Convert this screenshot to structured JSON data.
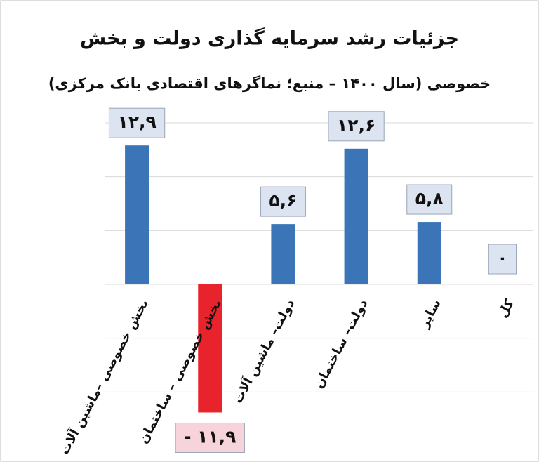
{
  "chart_data": {
    "type": "bar",
    "title": "جزئیات رشد سرمایه گذاری دولت و بخش",
    "subtitle": "خصوصی  (سال ۱۴۰۰ – منبع؛ نماگرهای اقتصادی بانک مرکزی)",
    "categories": [
      "بخش خصوصی –ماشین آلات",
      "بخش خصوصی – ساختمان",
      "دولت– ماشین آلات",
      "دولت– ساختمان",
      "سایر",
      "کل"
    ],
    "values": [
      12.9,
      -11.9,
      5.6,
      12.6,
      5.8,
      0
    ],
    "value_labels": [
      "۱۲,۹",
      "- ۱۱,۹",
      "۵,۶",
      "۱۲,۶",
      "۵,۸",
      "۰"
    ],
    "color": "#3b74b7",
    "negative_color": "#e8232b",
    "ylim": [
      -15,
      15
    ],
    "yticks": [
      -10,
      -5,
      0,
      5,
      10,
      15
    ],
    "grid": true
  }
}
